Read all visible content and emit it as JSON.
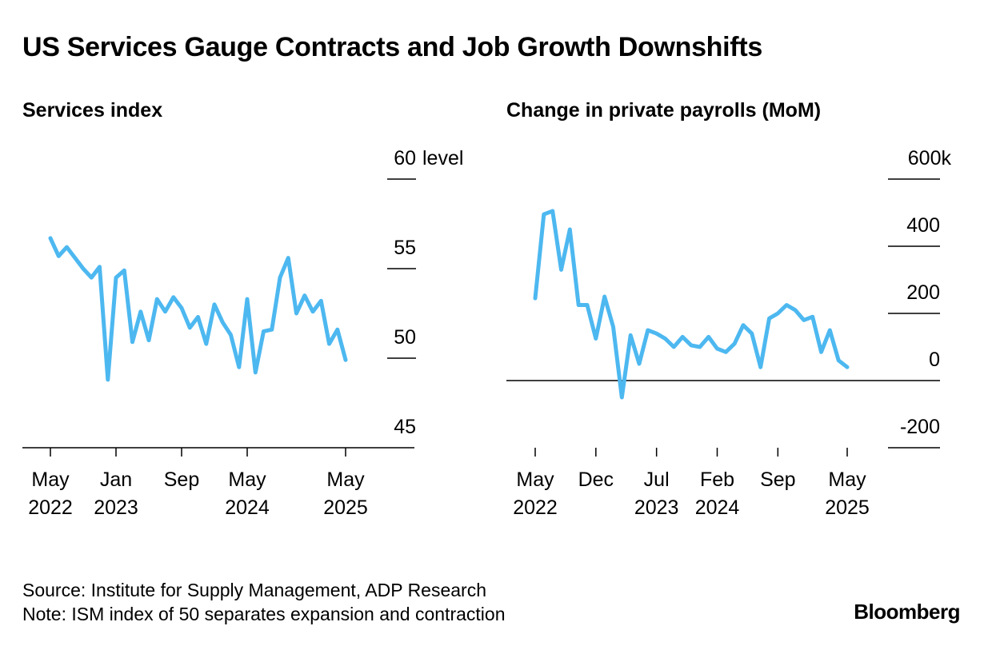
{
  "title": "US Services Gauge Contracts and Job Growth Downshifts",
  "colors": {
    "line": "#4db8f0",
    "axis": "#000000"
  },
  "chart_data": [
    {
      "type": "line",
      "title": "Services index",
      "unit_label": "level",
      "ylim": [
        45,
        60
      ],
      "yticks": [
        60,
        55,
        50,
        45
      ],
      "x_label_lines": [
        [
          "May",
          "2022"
        ],
        [
          "Jan",
          "2023"
        ],
        [
          "Sep",
          ""
        ],
        [
          "May",
          "2024"
        ],
        [
          "May",
          "2025"
        ]
      ],
      "x_label_index": [
        0,
        8,
        16,
        24,
        36
      ],
      "series": [
        {
          "name": "ISM services index",
          "values": [
            56.7,
            55.7,
            56.2,
            55.6,
            55.0,
            54.5,
            55.1,
            48.8,
            54.5,
            54.9,
            50.9,
            52.6,
            51.0,
            53.3,
            52.6,
            53.4,
            52.8,
            51.7,
            52.3,
            50.8,
            53.0,
            52.0,
            51.3,
            49.5,
            53.3,
            49.2,
            51.5,
            51.6,
            54.5,
            55.6,
            52.5,
            53.5,
            52.6,
            53.2,
            50.8,
            51.6,
            49.9
          ]
        }
      ]
    },
    {
      "type": "line",
      "title": "Change in private payrolls (MoM)",
      "unit_label": "k",
      "ylim": [
        -200,
        600
      ],
      "yticks": [
        600,
        400,
        200,
        0,
        -200
      ],
      "zero_line": 0,
      "x_label_lines": [
        [
          "May",
          "2022"
        ],
        [
          "Dec",
          ""
        ],
        [
          "Jul",
          "2023"
        ],
        [
          "Feb",
          "2024"
        ],
        [
          "Sep",
          ""
        ],
        [
          "May",
          "2025"
        ]
      ],
      "x_label_index": [
        0,
        7,
        14,
        21,
        28,
        36
      ],
      "series": [
        {
          "name": "ADP private payrolls change",
          "values": [
            245,
            495,
            505,
            330,
            450,
            225,
            225,
            125,
            250,
            160,
            -50,
            135,
            50,
            150,
            140,
            125,
            100,
            130,
            105,
            100,
            130,
            95,
            85,
            110,
            165,
            140,
            40,
            185,
            200,
            225,
            210,
            180,
            190,
            85,
            150,
            60,
            40
          ]
        }
      ]
    }
  ],
  "footer": {
    "source": "Source: Institute for Supply Management, ADP Research",
    "note": "Note: ISM index of 50 separates expansion and contraction",
    "brand": "Bloomberg"
  }
}
